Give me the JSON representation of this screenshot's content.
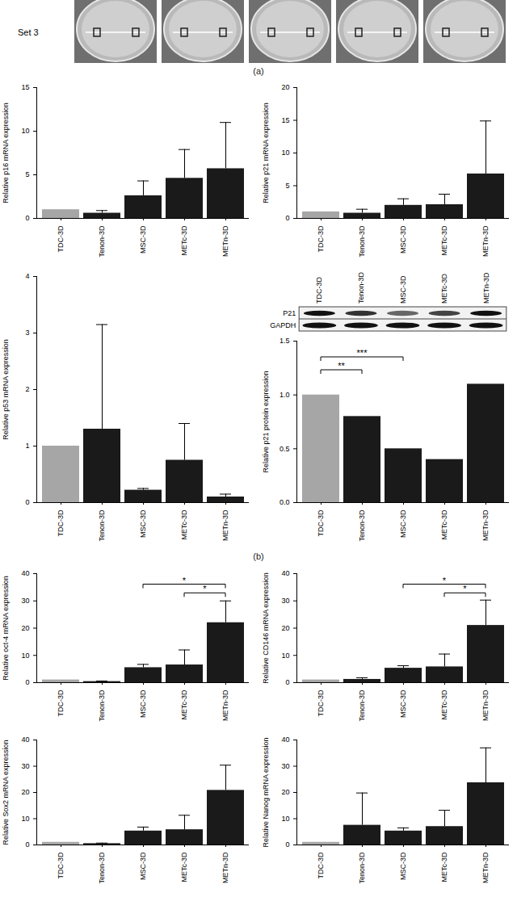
{
  "strip": {
    "label": "Set 3",
    "panel": "(a)"
  },
  "panel_b": "(b)",
  "blot": {
    "lanes": [
      "TDC-3D",
      "Tenon-3D",
      "MSC-3D",
      "METc-3D",
      "METn-3D"
    ],
    "rows": [
      "P21",
      "GAPDH"
    ]
  },
  "chart_data": [
    {
      "type": "bar",
      "y_label": "Relative p16 mRNA expression",
      "categories": [
        "TDC-3D",
        "Tenon-3D",
        "MSC-3D",
        "METc-3D",
        "METn-3D"
      ],
      "values": [
        1,
        0.6,
        2.6,
        4.6,
        5.7
      ],
      "error": [
        0,
        0.3,
        1.7,
        3.3,
        5.3
      ],
      "colors": [
        "#a6a6a6",
        "#1a1a1a",
        "#1a1a1a",
        "#1a1a1a",
        "#1a1a1a"
      ],
      "ylim": [
        0,
        15
      ],
      "yticks": [
        0,
        5,
        10,
        15
      ]
    },
    {
      "type": "bar",
      "y_label": "Relative p21 mRNA expression",
      "categories": [
        "TDC-3D",
        "Tenon-3D",
        "MSC-3D",
        "METc-3D",
        "METn-3D"
      ],
      "values": [
        1,
        0.8,
        2.0,
        2.1,
        6.8
      ],
      "error": [
        0,
        0.6,
        1.0,
        1.6,
        8.1
      ],
      "colors": [
        "#a6a6a6",
        "#1a1a1a",
        "#1a1a1a",
        "#1a1a1a",
        "#1a1a1a"
      ],
      "ylim": [
        0,
        20
      ],
      "yticks": [
        0,
        5,
        10,
        15,
        20
      ]
    },
    {
      "type": "bar",
      "y_label": "Relative p53 mRNA expression",
      "categories": [
        "TDC-3D",
        "Tenon-3D",
        "MSC-3D",
        "METc-3D",
        "METn-3D"
      ],
      "values": [
        1,
        1.3,
        0.22,
        0.75,
        0.1
      ],
      "error": [
        0,
        1.85,
        0.03,
        0.65,
        0.05
      ],
      "colors": [
        "#a6a6a6",
        "#1a1a1a",
        "#1a1a1a",
        "#1a1a1a",
        "#1a1a1a"
      ],
      "ylim": [
        0,
        4
      ],
      "yticks": [
        0,
        1,
        2,
        3,
        4
      ]
    },
    {
      "type": "bar",
      "y_label": "Relative p21 protein expression",
      "categories": [
        "TDC-3D",
        "Tenon-3D",
        "MSC-3D",
        "METc-3D",
        "METn-3D"
      ],
      "values": [
        1.0,
        0.8,
        0.5,
        0.4,
        1.1
      ],
      "colors": [
        "#a6a6a6",
        "#1a1a1a",
        "#1a1a1a",
        "#1a1a1a",
        "#1a1a1a"
      ],
      "ylim": [
        0,
        1.5
      ],
      "yticks": [
        {
          "value": 0,
          "label": "0.0"
        },
        {
          "value": 0.5,
          "label": "0.5"
        },
        {
          "value": 1,
          "label": "1.0"
        },
        {
          "value": 1.5,
          "label": "1.5"
        }
      ],
      "significance": [
        {
          "from": "TDC-3D",
          "to": "Tenon-3D",
          "label": "**"
        },
        {
          "from": "TDC-3D",
          "to": "MSC-3D",
          "label": "***"
        }
      ]
    },
    {
      "type": "bar",
      "y_label": "Relative oct-4 mRNA expression",
      "categories": [
        "TDC-3D",
        "Tenon-3D",
        "MSC-3D",
        "METc-3D",
        "METn-3D"
      ],
      "values": [
        1,
        0.4,
        5.5,
        6.5,
        22
      ],
      "error": [
        0,
        0.2,
        1.2,
        5.5,
        8
      ],
      "colors": [
        "#a6a6a6",
        "#1a1a1a",
        "#1a1a1a",
        "#1a1a1a",
        "#1a1a1a"
      ],
      "ylim": [
        0,
        40
      ],
      "yticks": [
        0,
        10,
        20,
        30,
        40
      ],
      "significance": [
        {
          "from": "MSC-3D",
          "to": "METn-3D",
          "label": "*"
        },
        {
          "from": "METc-3D",
          "to": "METn-3D",
          "label": "*"
        }
      ]
    },
    {
      "type": "bar",
      "y_label": "Relative CD146 mRNA expression",
      "categories": [
        "TDC-3D",
        "Tenon-3D",
        "MSC-3D",
        "METc-3D",
        "METn-3D"
      ],
      "values": [
        1,
        1.2,
        5.3,
        5.8,
        21
      ],
      "error": [
        0,
        0.6,
        0.9,
        4.7,
        9.3
      ],
      "colors": [
        "#a6a6a6",
        "#1a1a1a",
        "#1a1a1a",
        "#1a1a1a",
        "#1a1a1a"
      ],
      "ylim": [
        0,
        40
      ],
      "yticks": [
        0,
        10,
        20,
        30,
        40
      ],
      "significance": [
        {
          "from": "MSC-3D",
          "to": "METn-3D",
          "label": "*"
        },
        {
          "from": "METc-3D",
          "to": "METn-3D",
          "label": "*"
        }
      ]
    },
    {
      "type": "bar",
      "y_label": "Relative Sox2 mRNA expression",
      "categories": [
        "TDC-3D",
        "Tenon-3D",
        "MSC-3D",
        "METc-3D",
        "METn-3D"
      ],
      "values": [
        1,
        0.5,
        5.3,
        5.8,
        20.8
      ],
      "error": [
        0,
        0.2,
        1.5,
        5.5,
        9.6
      ],
      "colors": [
        "#a6a6a6",
        "#1a1a1a",
        "#1a1a1a",
        "#1a1a1a",
        "#1a1a1a"
      ],
      "ylim": [
        0,
        40
      ],
      "yticks": [
        0,
        10,
        20,
        30,
        40
      ]
    },
    {
      "type": "bar",
      "y_label": "Relative Nanog mRNA expression",
      "categories": [
        "TDC-3D",
        "Tenon-3D",
        "MSC-3D",
        "METc-3D",
        "METn-3D"
      ],
      "values": [
        1,
        7.5,
        5.3,
        7.0,
        23.7
      ],
      "error": [
        0,
        12.3,
        1.2,
        6.2,
        13.3
      ],
      "colors": [
        "#a6a6a6",
        "#1a1a1a",
        "#1a1a1a",
        "#1a1a1a",
        "#1a1a1a"
      ],
      "ylim": [
        0,
        40
      ],
      "yticks": [
        0,
        10,
        20,
        30,
        40
      ]
    }
  ]
}
